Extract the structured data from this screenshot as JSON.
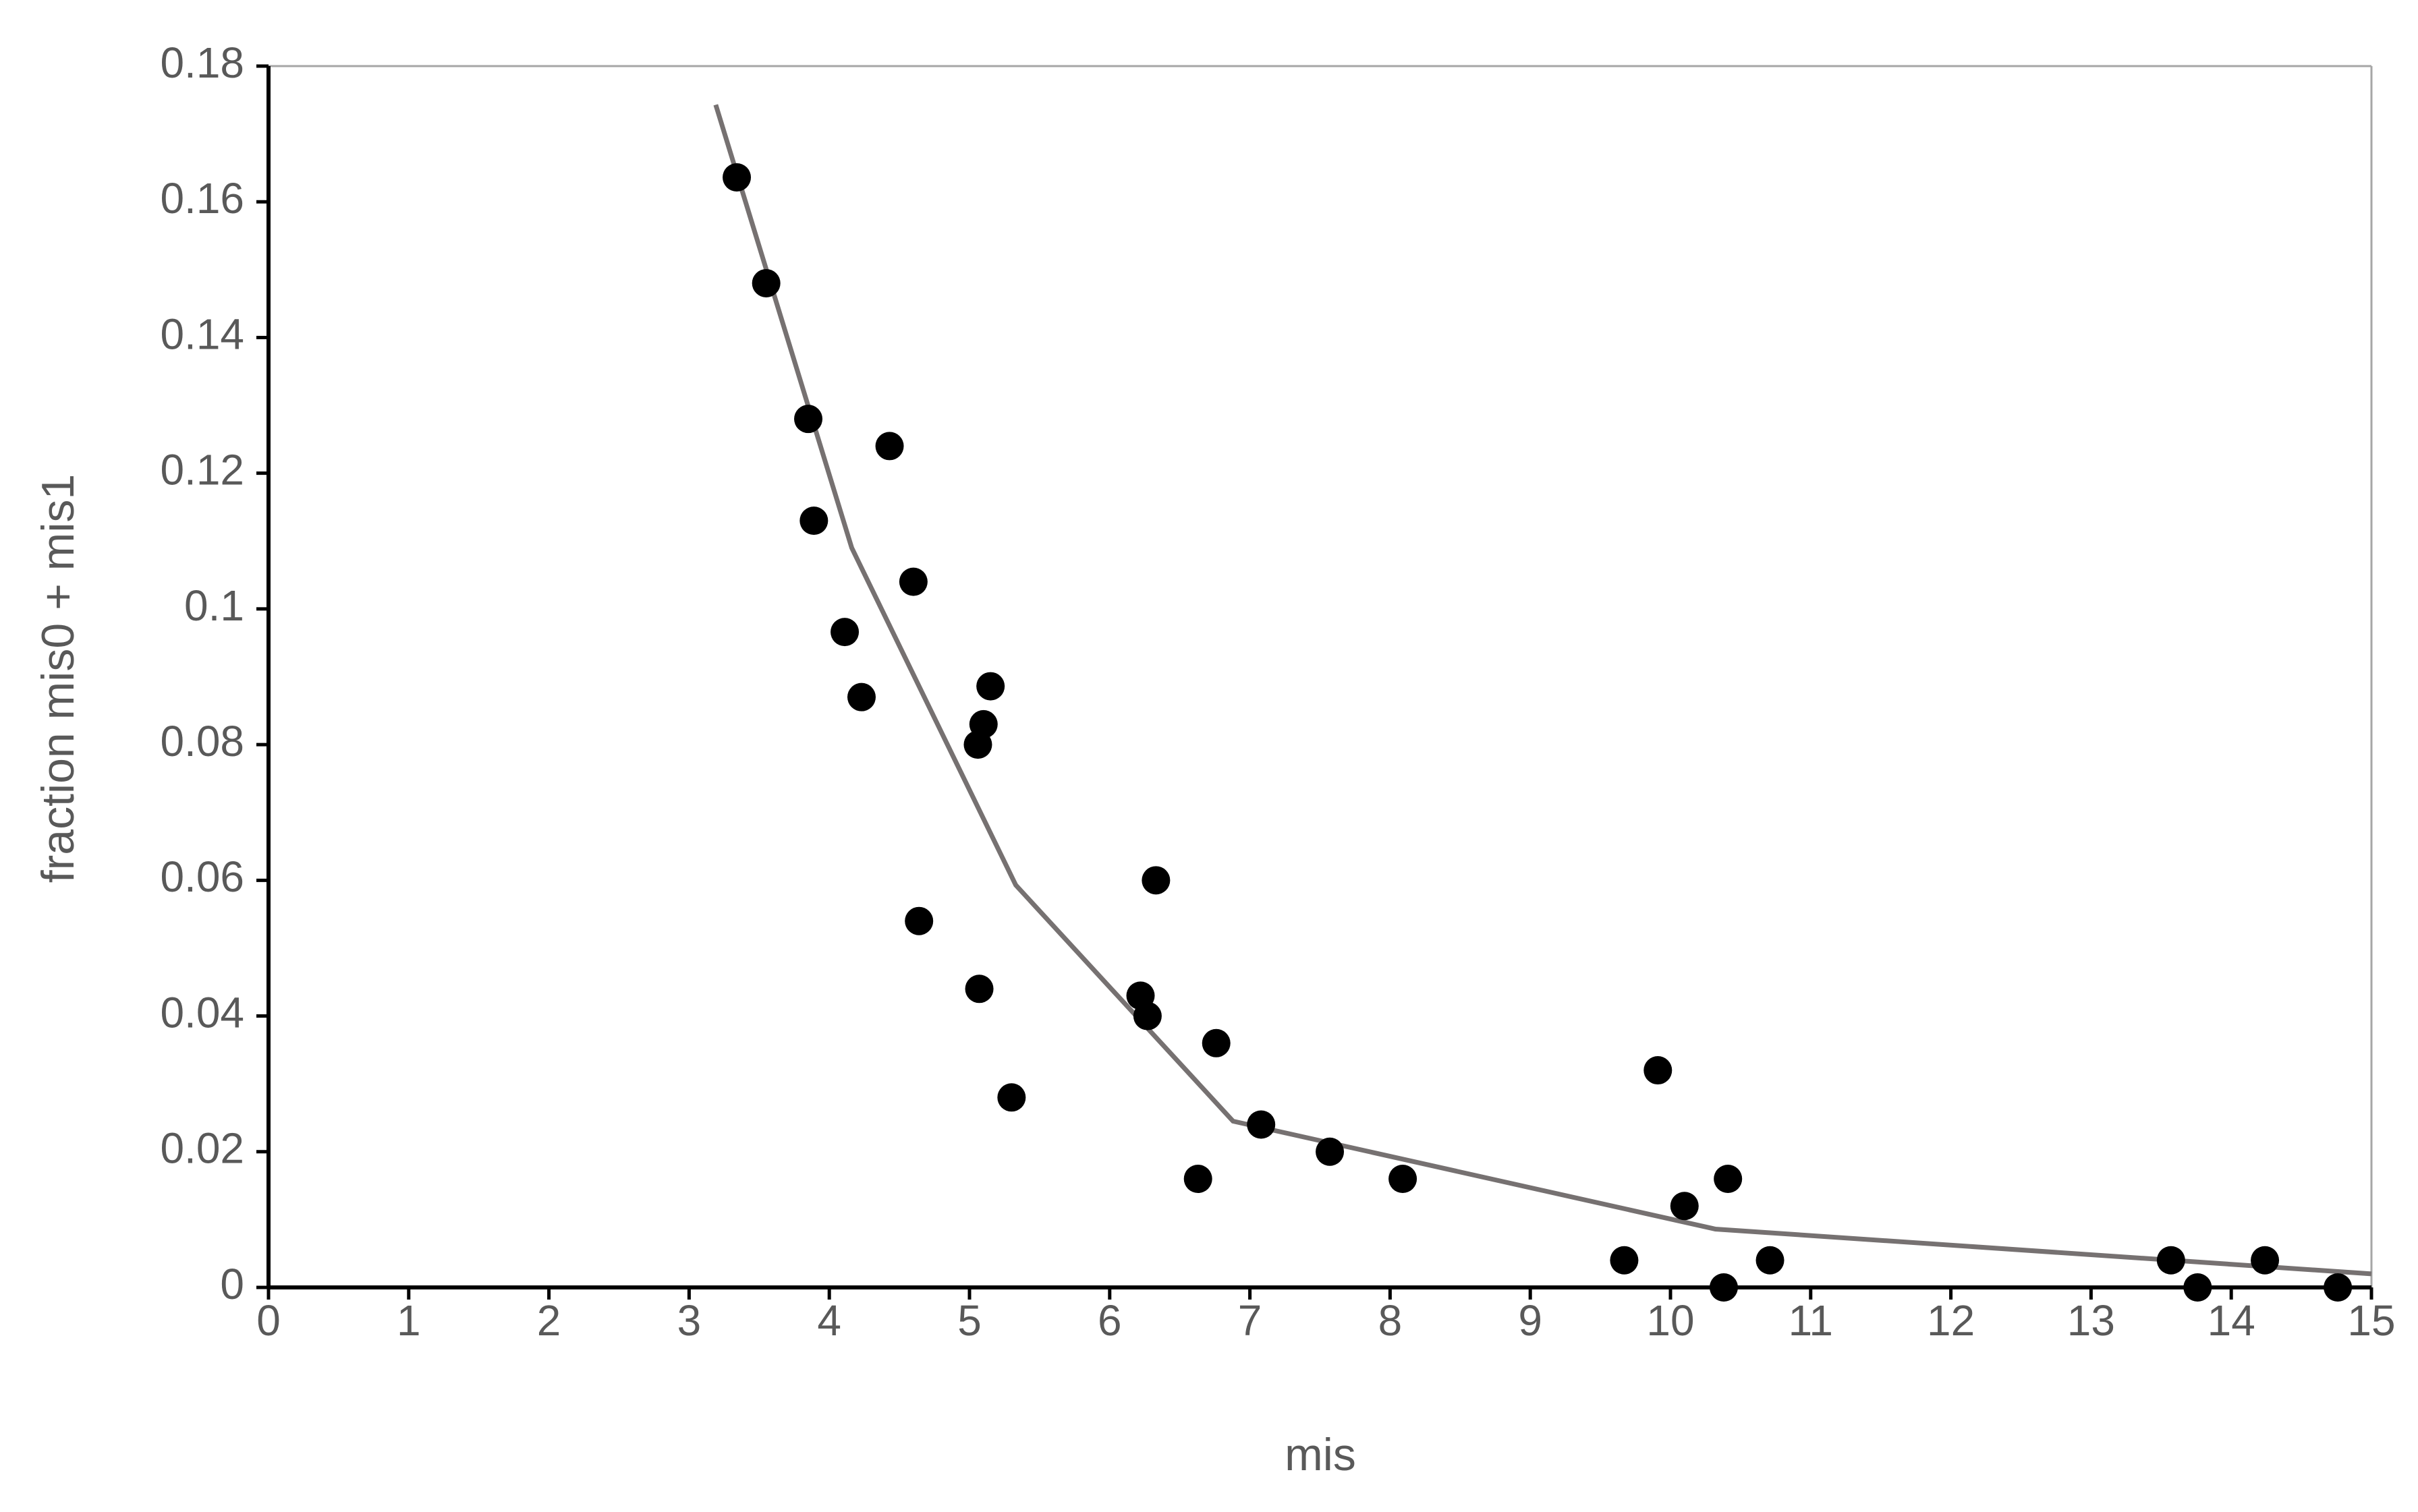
{
  "chart_data": {
    "type": "scatter",
    "x_label": "mis",
    "y_label": "fraction mis0 + mis1",
    "xlim": [
      0,
      15
    ],
    "ylim": [
      0,
      0.18
    ],
    "xticks": [
      0,
      1,
      2,
      3,
      4,
      5,
      6,
      7,
      8,
      9,
      10,
      11,
      12,
      13,
      14,
      15
    ],
    "yticks": [
      0,
      0.02,
      0.04,
      0.06,
      0.08,
      0.1,
      0.12,
      0.14,
      0.16,
      0.18
    ],
    "series": [
      {
        "mode": "markers",
        "color": "#000000",
        "x": [
          3.34,
          3.55,
          3.85,
          3.89,
          4.43,
          4.11,
          4.6,
          4.23,
          5.15,
          5.1,
          5.06,
          4.64,
          5.07,
          5.3,
          6.33,
          6.22,
          6.27,
          6.76,
          6.63,
          7.08,
          7.57,
          8.09,
          9.67,
          9.91,
          10.1,
          10.41,
          10.38,
          10.71,
          13.57,
          13.76,
          14.24,
          14.76
        ],
        "values": [
          0.1636,
          0.148,
          0.128,
          0.113,
          0.124,
          0.0966,
          0.104,
          0.087,
          0.0886,
          0.083,
          0.08,
          0.054,
          0.044,
          0.028,
          0.06,
          0.043,
          0.04,
          0.036,
          0.016,
          0.024,
          0.02,
          0.016,
          0.004,
          0.032,
          0.012,
          0.016,
          0,
          0.004,
          0.004,
          0,
          0.004,
          0
        ]
      },
      {
        "mode": "line",
        "color": "#767171",
        "x": [
          3.19,
          4.16,
          5.33,
          6.88,
          10.32,
          15
        ],
        "values": [
          0.1743,
          0.109,
          0.0593,
          0.0245,
          0.0086,
          0.002
        ]
      }
    ]
  }
}
